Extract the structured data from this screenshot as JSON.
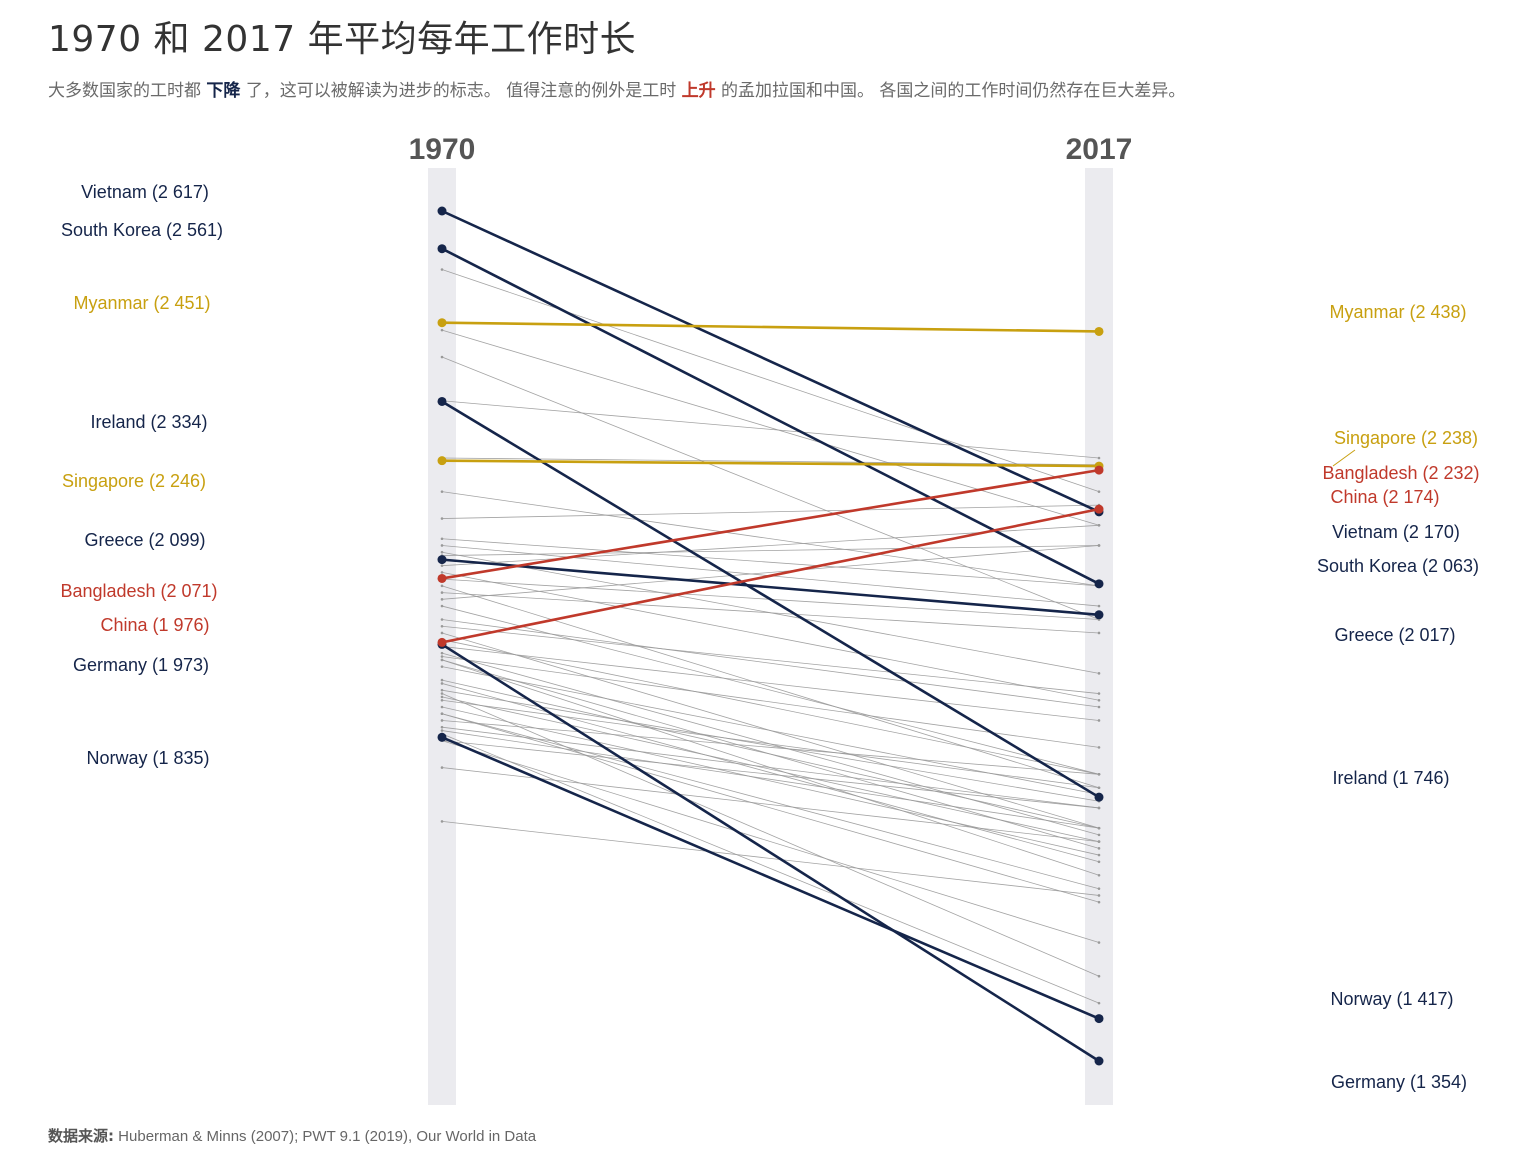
{
  "title": "1970 和 2017 年平均每年工作时长",
  "subtitle": {
    "part1": "大多数国家的工时都",
    "down": "下降",
    "part2": "了，这可以被解读为进步的标志。 值得注意的例外是工时",
    "up": "上升",
    "part3": "的孟加拉国和中国。 各国之间的工作时间仍然存在巨大差异。"
  },
  "source": {
    "label": "数据来源:",
    "text": "Huberman & Minns (2007); PWT 9.1 (2019), Our World in Data"
  },
  "colors": {
    "navy": "#15254a",
    "gold": "#c8a010",
    "red": "#c0392b",
    "grey_line": "#999999",
    "column_band": "#ebebef",
    "year_label": "#555555"
  },
  "chart_data": {
    "type": "slope",
    "x": [
      "1970",
      "2017"
    ],
    "ylabel": "",
    "highlighted": [
      {
        "name": "Vietnam",
        "v1970": 2617,
        "v2017": 2170,
        "label1970": "Vietnam (2 617)",
        "label2017": "Vietnam (2 170)",
        "group": "decrease"
      },
      {
        "name": "South Korea",
        "v1970": 2561,
        "v2017": 2063,
        "label1970": "South Korea (2 561)",
        "label2017": "South Korea (2 063)",
        "group": "decrease"
      },
      {
        "name": "Myanmar",
        "v1970": 2451,
        "v2017": 2438,
        "label1970": "Myanmar (2 451)",
        "label2017": "Myanmar (2 438)",
        "group": "flat"
      },
      {
        "name": "Ireland",
        "v1970": 2334,
        "v2017": 1746,
        "label1970": "Ireland (2 334)",
        "label2017": "Ireland (1 746)",
        "group": "decrease"
      },
      {
        "name": "Singapore",
        "v1970": 2246,
        "v2017": 2238,
        "label1970": "Singapore (2 246)",
        "label2017": "Singapore (2 238)",
        "group": "flat"
      },
      {
        "name": "Greece",
        "v1970": 2099,
        "v2017": 2017,
        "label1970": "Greece (2 099)",
        "label2017": "Greece (2 017)",
        "group": "decrease"
      },
      {
        "name": "Bangladesh",
        "v1970": 2071,
        "v2017": 2232,
        "label1970": "Bangladesh (2 071)",
        "label2017": "Bangladesh (2 232)",
        "group": "increase"
      },
      {
        "name": "China",
        "v1970": 1976,
        "v2017": 2174,
        "label1970": "China (1 976)",
        "label2017": "China (2 174)",
        "group": "increase"
      },
      {
        "name": "Germany",
        "v1970": 1973,
        "v2017": 1354,
        "label1970": "Germany (1 973)",
        "label2017": "Germany (1 354)",
        "group": "decrease"
      },
      {
        "name": "Norway",
        "v1970": 1835,
        "v2017": 1417,
        "label1970": "Norway (1 835)",
        "label2017": "Norway (1 417)",
        "group": "decrease"
      }
    ],
    "background_series": [
      [
        2530,
        2200
      ],
      [
        2440,
        2150
      ],
      [
        2400,
        2010
      ],
      [
        2335,
        2250
      ],
      [
        2250,
        2240
      ],
      [
        2200,
        2060
      ],
      [
        2160,
        2180
      ],
      [
        2130,
        2060
      ],
      [
        2120,
        2030
      ],
      [
        2110,
        1930
      ],
      [
        2105,
        2120
      ],
      [
        2090,
        2150
      ],
      [
        2080,
        1890
      ],
      [
        2070,
        2010
      ],
      [
        2050,
        1990
      ],
      [
        2040,
        2120
      ],
      [
        2030,
        1780
      ],
      [
        1990,
        1700
      ],
      [
        1980,
        1780
      ],
      [
        1970,
        1860
      ],
      [
        1960,
        1690
      ],
      [
        1955,
        1820
      ],
      [
        1950,
        1630
      ],
      [
        1940,
        1750
      ],
      [
        1920,
        1700
      ],
      [
        1905,
        1740
      ],
      [
        1900,
        1480
      ],
      [
        1895,
        1680
      ],
      [
        1890,
        1760
      ],
      [
        1880,
        1660
      ],
      [
        1870,
        1590
      ],
      [
        1870,
        1610
      ],
      [
        1860,
        1780
      ],
      [
        1850,
        1730
      ],
      [
        1845,
        1700
      ],
      [
        1840,
        1440
      ],
      [
        1830,
        1530
      ],
      [
        1830,
        1730
      ],
      [
        1790,
        1680
      ],
      [
        1710,
        1600
      ],
      [
        1950,
        1670
      ],
      [
        2000,
        1900
      ],
      [
        2010,
        1880
      ],
      [
        1915,
        1650
      ],
      [
        2060,
        1760
      ]
    ]
  }
}
